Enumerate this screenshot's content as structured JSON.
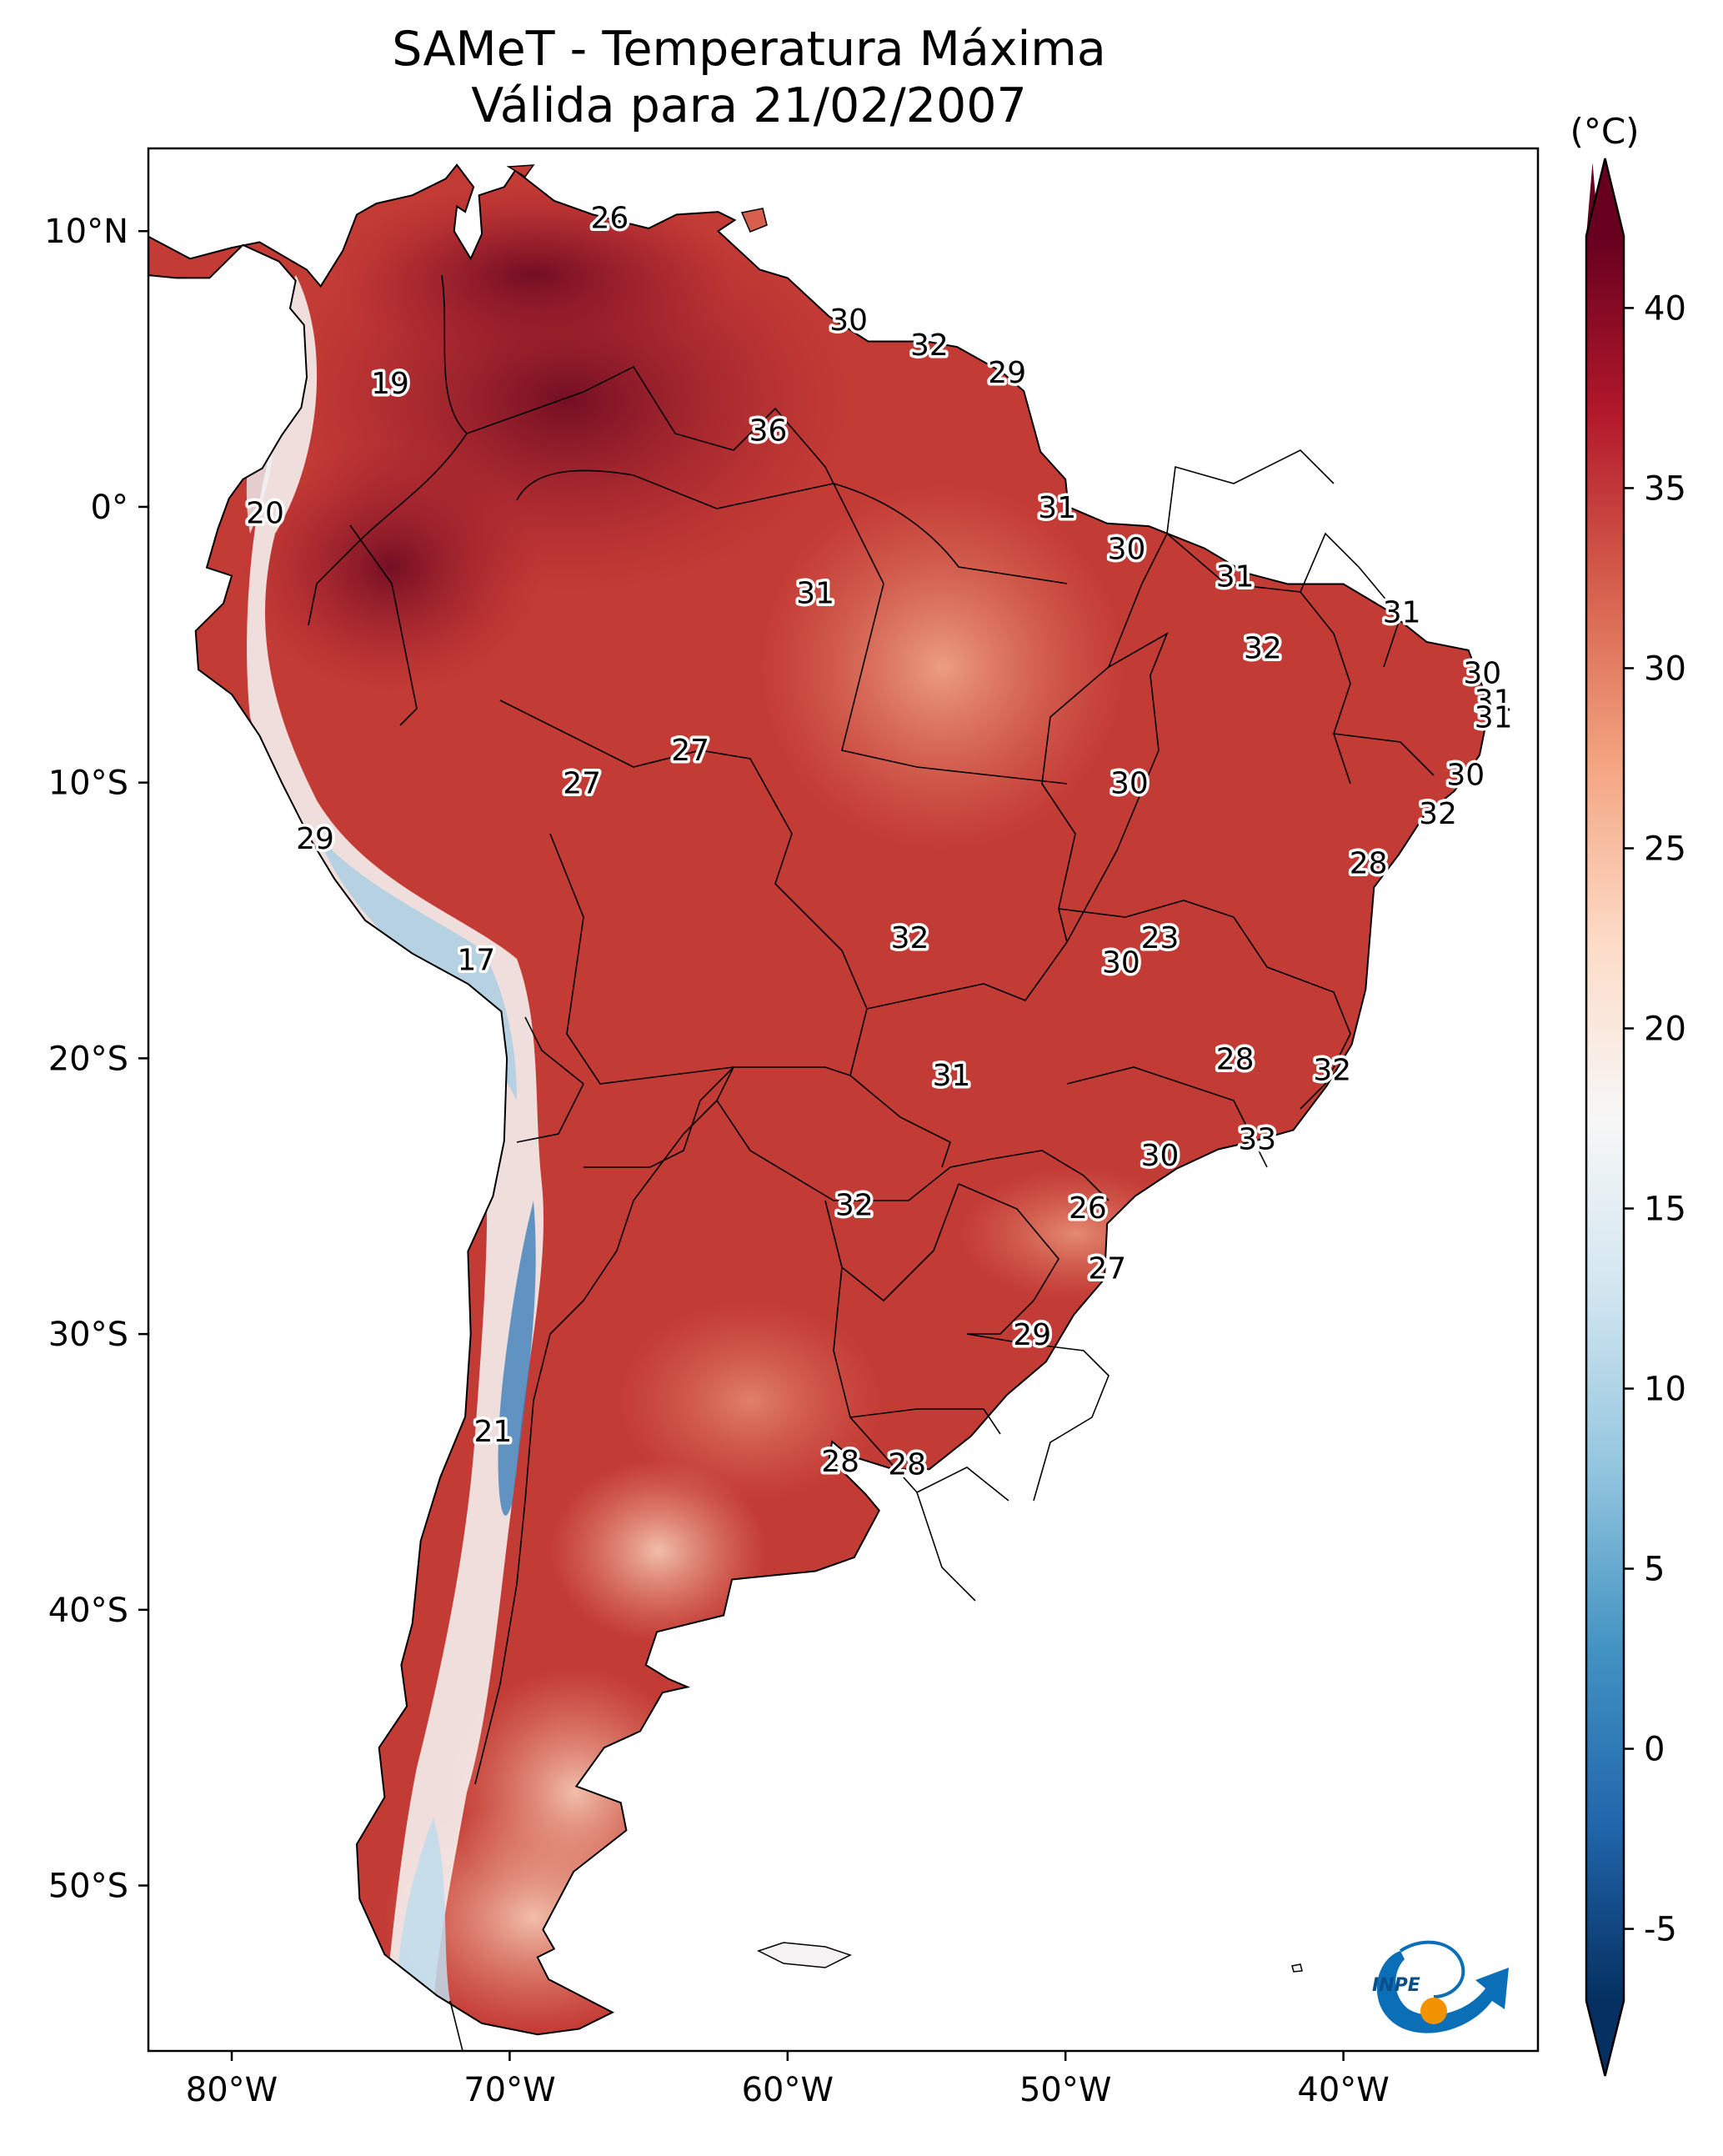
{
  "title": {
    "line1": "SAMeT - Temperatura Máxima",
    "line2": "Válida para 21/02/2007"
  },
  "colorbar": {
    "unit_label": "(°C)",
    "ticks": [
      40,
      35,
      30,
      25,
      20,
      15,
      10,
      5,
      0,
      -5
    ],
    "min": -7,
    "max": 42,
    "colors": [
      "#053061",
      "#2166ac",
      "#4393c3",
      "#92c5de",
      "#d1e5f0",
      "#f7f7f7",
      "#fddbc7",
      "#f4a582",
      "#d6604d",
      "#b2182b",
      "#67001f"
    ]
  },
  "axes": {
    "lat_ticks": [
      {
        "label": "10°N",
        "value": 10
      },
      {
        "label": "0°",
        "value": 0
      },
      {
        "label": "10°S",
        "value": -10
      },
      {
        "label": "20°S",
        "value": -20
      },
      {
        "label": "30°S",
        "value": -30
      },
      {
        "label": "40°S",
        "value": -40
      },
      {
        "label": "50°S",
        "value": -50
      }
    ],
    "lon_ticks": [
      {
        "label": "80°W",
        "value": -80
      },
      {
        "label": "70°W",
        "value": -70
      },
      {
        "label": "60°W",
        "value": -60
      },
      {
        "label": "50°W",
        "value": -50
      },
      {
        "label": "40°W",
        "value": -40
      }
    ],
    "lon_range": [
      -83,
      -33
    ],
    "lat_range": [
      -56,
      13
    ]
  },
  "station_labels": [
    {
      "text": "26",
      "lon": -66.4,
      "lat": 10.5
    },
    {
      "text": "19",
      "lon": -74.3,
      "lat": 4.5
    },
    {
      "text": "20",
      "lon": -78.8,
      "lat": -0.2
    },
    {
      "text": "29",
      "lon": -77.0,
      "lat": -12.0
    },
    {
      "text": "17",
      "lon": -71.2,
      "lat": -16.4
    },
    {
      "text": "21",
      "lon": -70.6,
      "lat": -33.5
    },
    {
      "text": "30",
      "lon": -57.8,
      "lat": 6.8
    },
    {
      "text": "32",
      "lon": -54.9,
      "lat": 5.9
    },
    {
      "text": "29",
      "lon": -52.1,
      "lat": 4.9
    },
    {
      "text": "36",
      "lon": -60.7,
      "lat": 2.8
    },
    {
      "text": "31",
      "lon": -59.0,
      "lat": -3.1
    },
    {
      "text": "31",
      "lon": -50.3,
      "lat": 0.0
    },
    {
      "text": "30",
      "lon": -47.8,
      "lat": -1.5
    },
    {
      "text": "31",
      "lon": -43.9,
      "lat": -2.5
    },
    {
      "text": "31",
      "lon": -37.9,
      "lat": -3.8
    },
    {
      "text": "32",
      "lon": -42.9,
      "lat": -5.1
    },
    {
      "text": "30",
      "lon": -35.0,
      "lat": -6.0
    },
    {
      "text": "31",
      "lon": -34.6,
      "lat": -7.0
    },
    {
      "text": "31",
      "lon": -34.6,
      "lat": -7.6
    },
    {
      "text": "30",
      "lon": -35.6,
      "lat": -9.7
    },
    {
      "text": "32",
      "lon": -36.6,
      "lat": -11.1
    },
    {
      "text": "28",
      "lon": -39.1,
      "lat": -12.9
    },
    {
      "text": "27",
      "lon": -63.5,
      "lat": -8.8
    },
    {
      "text": "27",
      "lon": -67.4,
      "lat": -10.0
    },
    {
      "text": "30",
      "lon": -47.7,
      "lat": -10.0
    },
    {
      "text": "32",
      "lon": -55.6,
      "lat": -15.6
    },
    {
      "text": "23",
      "lon": -46.6,
      "lat": -15.6
    },
    {
      "text": "30",
      "lon": -48.0,
      "lat": -16.5
    },
    {
      "text": "31",
      "lon": -54.1,
      "lat": -20.6
    },
    {
      "text": "28",
      "lon": -43.9,
      "lat": -20.0
    },
    {
      "text": "32",
      "lon": -40.4,
      "lat": -20.4
    },
    {
      "text": "33",
      "lon": -43.1,
      "lat": -22.9
    },
    {
      "text": "30",
      "lon": -46.6,
      "lat": -23.5
    },
    {
      "text": "32",
      "lon": -57.6,
      "lat": -25.3
    },
    {
      "text": "26",
      "lon": -49.2,
      "lat": -25.4
    },
    {
      "text": "27",
      "lon": -48.5,
      "lat": -27.6
    },
    {
      "text": "29",
      "lon": -51.2,
      "lat": -30.0
    },
    {
      "text": "28",
      "lon": -58.1,
      "lat": -34.6
    },
    {
      "text": "28",
      "lon": -55.7,
      "lat": -34.7
    }
  ],
  "logo": {
    "text": "INPE"
  }
}
